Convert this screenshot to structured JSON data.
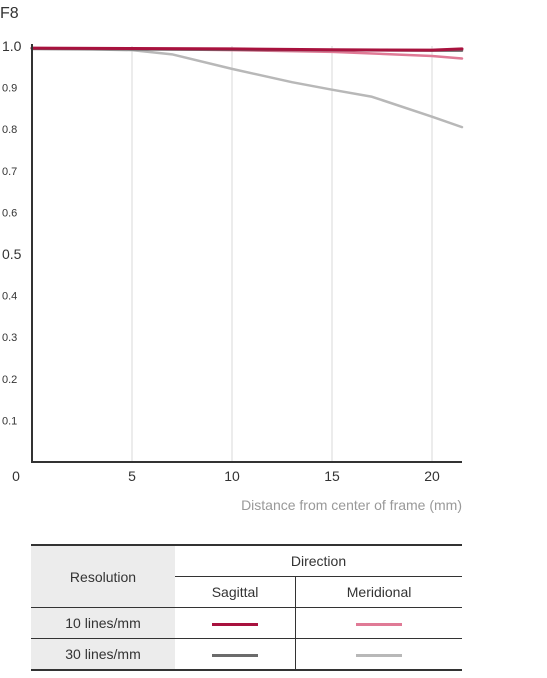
{
  "chart_data": {
    "type": "line",
    "title": "F8",
    "xlabel": "Distance from center of frame (mm)",
    "ylabel": "",
    "xlim": [
      0,
      21.5
    ],
    "ylim": [
      0,
      1.0
    ],
    "x_ticks": [
      5,
      10,
      15,
      20
    ],
    "x_tick_labels": [
      "5",
      "10",
      "15",
      "20"
    ],
    "x_origin_label": "0",
    "y_ticks": [
      0.1,
      0.2,
      0.3,
      0.4,
      0.5,
      0.6,
      0.7,
      0.8,
      0.9,
      1.0
    ],
    "y_tick_labels": [
      "0.1",
      "0.2",
      "0.3",
      "0.4",
      "0.5",
      "0.6",
      "0.7",
      "0.8",
      "0.9",
      "1.0"
    ],
    "grid": true,
    "series": [
      {
        "name": "10 lines/mm Sagittal",
        "color": "#a8123e",
        "x": [
          0,
          5,
          10,
          15,
          20,
          21.5
        ],
        "y": [
          0.995,
          0.994,
          0.993,
          0.991,
          0.99,
          0.993
        ]
      },
      {
        "name": "10 lines/mm Meridional",
        "color": "#e07a96",
        "x": [
          0,
          5,
          10,
          15,
          20,
          21.5
        ],
        "y": [
          0.995,
          0.993,
          0.99,
          0.986,
          0.976,
          0.97
        ]
      },
      {
        "name": "30 lines/mm Sagittal",
        "color": "#6b6b6b",
        "x": [
          0,
          5,
          10,
          15,
          20,
          21.5
        ],
        "y": [
          0.993,
          0.992,
          0.991,
          0.99,
          0.989,
          0.989
        ]
      },
      {
        "name": "30 lines/mm Meridional",
        "color": "#b8b8b8",
        "x": [
          0,
          3,
          5,
          7,
          10,
          13,
          15,
          17,
          20,
          21.5
        ],
        "y": [
          0.993,
          0.992,
          0.99,
          0.98,
          0.945,
          0.913,
          0.895,
          0.878,
          0.83,
          0.805
        ]
      }
    ]
  },
  "legend": {
    "resolution_header": "Resolution",
    "direction_header": "Direction",
    "sagittal_header": "Sagittal",
    "meridional_header": "Meridional",
    "rows": [
      {
        "label": "10 lines/mm",
        "sagittal_color": "#a8123e",
        "meridional_color": "#e07a96"
      },
      {
        "label": "30 lines/mm",
        "sagittal_color": "#6b6b6b",
        "meridional_color": "#b8b8b8"
      }
    ]
  }
}
